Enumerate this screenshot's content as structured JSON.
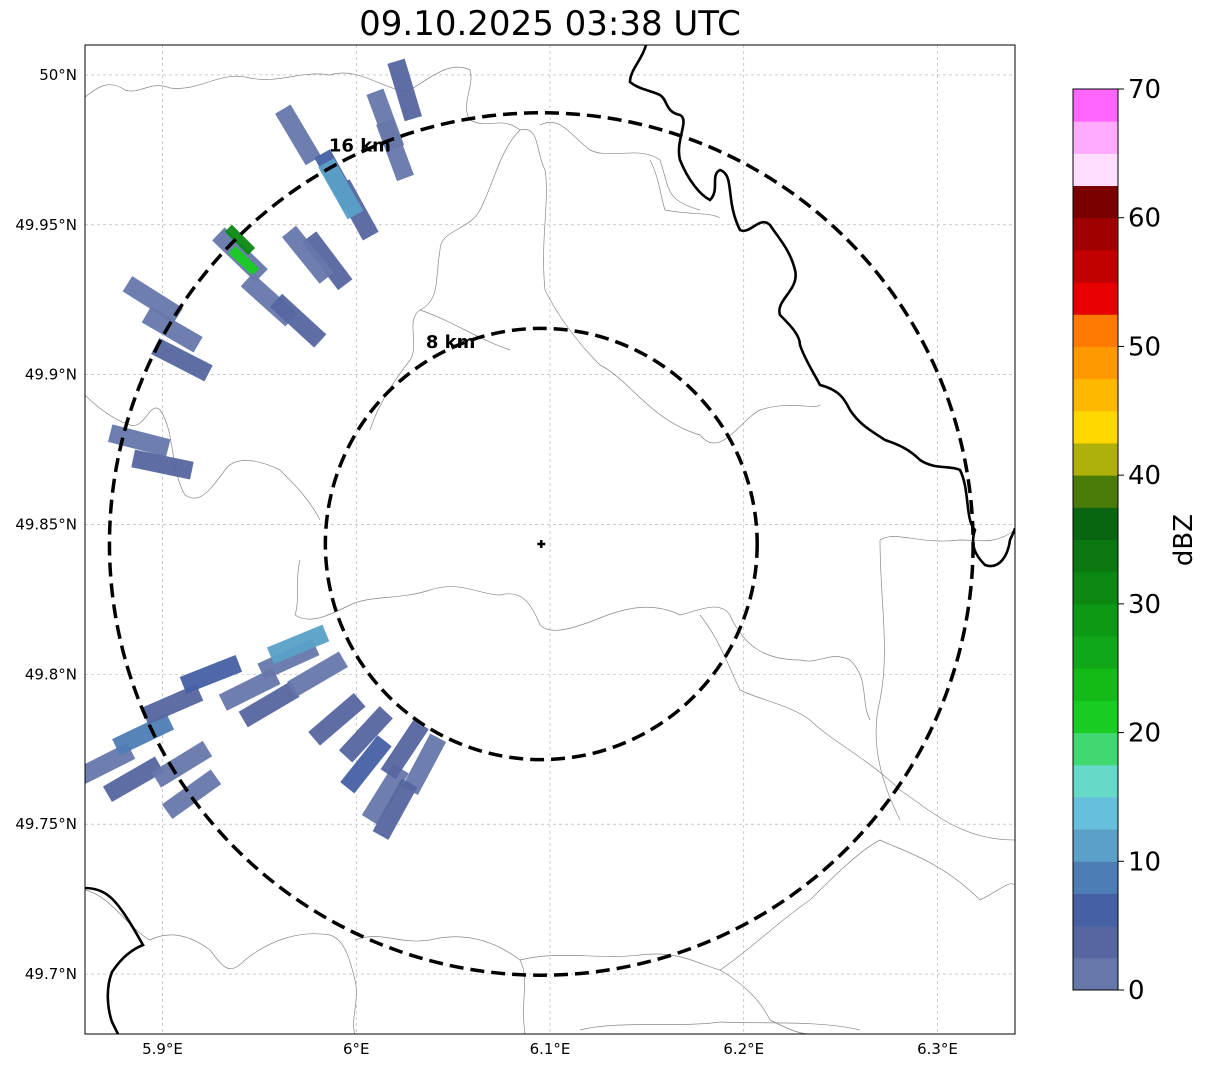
{
  "title": "09.10.2025 03:38 UTC",
  "map": {
    "lon_range": [
      5.86,
      6.34
    ],
    "lat_range": [
      49.68,
      50.01
    ],
    "lon_ticks": [
      {
        "value": 5.9,
        "label": "5.9°E"
      },
      {
        "value": 6.0,
        "label": "6°E"
      },
      {
        "value": 6.1,
        "label": "6.1°E"
      },
      {
        "value": 6.2,
        "label": "6.2°E"
      },
      {
        "value": 6.3,
        "label": "6.3°E"
      }
    ],
    "lat_ticks": [
      {
        "value": 50.0,
        "label": "50°N"
      },
      {
        "value": 49.95,
        "label": "49.95°N"
      },
      {
        "value": 49.9,
        "label": "49.9°N"
      },
      {
        "value": 49.85,
        "label": "49.85°N"
      },
      {
        "value": 49.8,
        "label": "49.8°N"
      },
      {
        "value": 49.75,
        "label": "49.75°N"
      },
      {
        "value": 49.7,
        "label": "49.7°N"
      }
    ],
    "gridlines": true,
    "radar_site": {
      "lon": 6.0955,
      "lat": 49.8435
    },
    "range_rings": [
      {
        "label": "8 km",
        "radius_km": 8
      },
      {
        "label": "16 km",
        "radius_km": 16
      }
    ]
  },
  "colorbar": {
    "label": "dBZ",
    "min": 0,
    "max": 70,
    "ticks": [
      "0",
      "10",
      "20",
      "30",
      "40",
      "50",
      "60",
      "70"
    ],
    "colors": [
      "#6677aa",
      "#5566a0",
      "#4560a5",
      "#4d7db5",
      "#5aa0c8",
      "#66c0dd",
      "#66d9c8",
      "#40d870",
      "#18cc22",
      "#14bb18",
      "#10a818",
      "#0e9914",
      "#0c8812",
      "#0a7710",
      "#086610",
      "#4a7a08",
      "#b0b00a",
      "#ffd800",
      "#ffb800",
      "#ff9900",
      "#ff7a00",
      "#e60000",
      "#c20000",
      "#a00000",
      "#7a0000",
      "#ffddff",
      "#ffaaff",
      "#ff66ff",
      "#ee33ee"
    ]
  },
  "echoes": [
    {
      "lon": 5.905,
      "lat": 49.915,
      "dbz": 2
    },
    {
      "lon": 5.895,
      "lat": 49.925,
      "dbz": 2
    },
    {
      "lon": 5.91,
      "lat": 49.905,
      "dbz": 3
    },
    {
      "lon": 5.888,
      "lat": 49.878,
      "dbz": 2
    },
    {
      "lon": 5.9,
      "lat": 49.87,
      "dbz": 3
    },
    {
      "lon": 5.94,
      "lat": 49.94,
      "dbz": 2
    },
    {
      "lon": 5.94,
      "lat": 49.945,
      "dbz": 32
    },
    {
      "lon": 5.942,
      "lat": 49.938,
      "dbz": 20
    },
    {
      "lon": 5.955,
      "lat": 49.925,
      "dbz": 2
    },
    {
      "lon": 5.97,
      "lat": 49.918,
      "dbz": 3
    },
    {
      "lon": 5.985,
      "lat": 49.938,
      "dbz": 4
    },
    {
      "lon": 5.975,
      "lat": 49.94,
      "dbz": 2
    },
    {
      "lon": 5.97,
      "lat": 49.98,
      "dbz": 2
    },
    {
      "lon": 5.99,
      "lat": 49.965,
      "dbz": 5
    },
    {
      "lon": 6.0,
      "lat": 49.955,
      "dbz": 3
    },
    {
      "lon": 5.992,
      "lat": 49.962,
      "dbz": 10
    },
    {
      "lon": 6.015,
      "lat": 49.985,
      "dbz": 2
    },
    {
      "lon": 6.025,
      "lat": 49.995,
      "dbz": 3
    },
    {
      "lon": 6.02,
      "lat": 49.975,
      "dbz": 2
    },
    {
      "lon": 5.87,
      "lat": 49.77,
      "dbz": 2
    },
    {
      "lon": 5.885,
      "lat": 49.765,
      "dbz": 3
    },
    {
      "lon": 5.89,
      "lat": 49.78,
      "dbz": 9
    },
    {
      "lon": 5.91,
      "lat": 49.77,
      "dbz": 2
    },
    {
      "lon": 5.905,
      "lat": 49.79,
      "dbz": 3
    },
    {
      "lon": 5.925,
      "lat": 49.8,
      "dbz": 5
    },
    {
      "lon": 5.945,
      "lat": 49.795,
      "dbz": 2
    },
    {
      "lon": 5.955,
      "lat": 49.79,
      "dbz": 3
    },
    {
      "lon": 5.915,
      "lat": 49.76,
      "dbz": 2
    },
    {
      "lon": 5.965,
      "lat": 49.805,
      "dbz": 2
    },
    {
      "lon": 5.97,
      "lat": 49.81,
      "dbz": 10
    },
    {
      "lon": 5.98,
      "lat": 49.8,
      "dbz": 2
    },
    {
      "lon": 5.99,
      "lat": 49.785,
      "dbz": 3
    },
    {
      "lon": 6.005,
      "lat": 49.77,
      "dbz": 5
    },
    {
      "lon": 6.015,
      "lat": 49.76,
      "dbz": 2
    },
    {
      "lon": 6.005,
      "lat": 49.78,
      "dbz": 3
    },
    {
      "lon": 6.025,
      "lat": 49.775,
      "dbz": 4
    },
    {
      "lon": 6.035,
      "lat": 49.77,
      "dbz": 2
    },
    {
      "lon": 6.02,
      "lat": 49.755,
      "dbz": 3
    }
  ]
}
